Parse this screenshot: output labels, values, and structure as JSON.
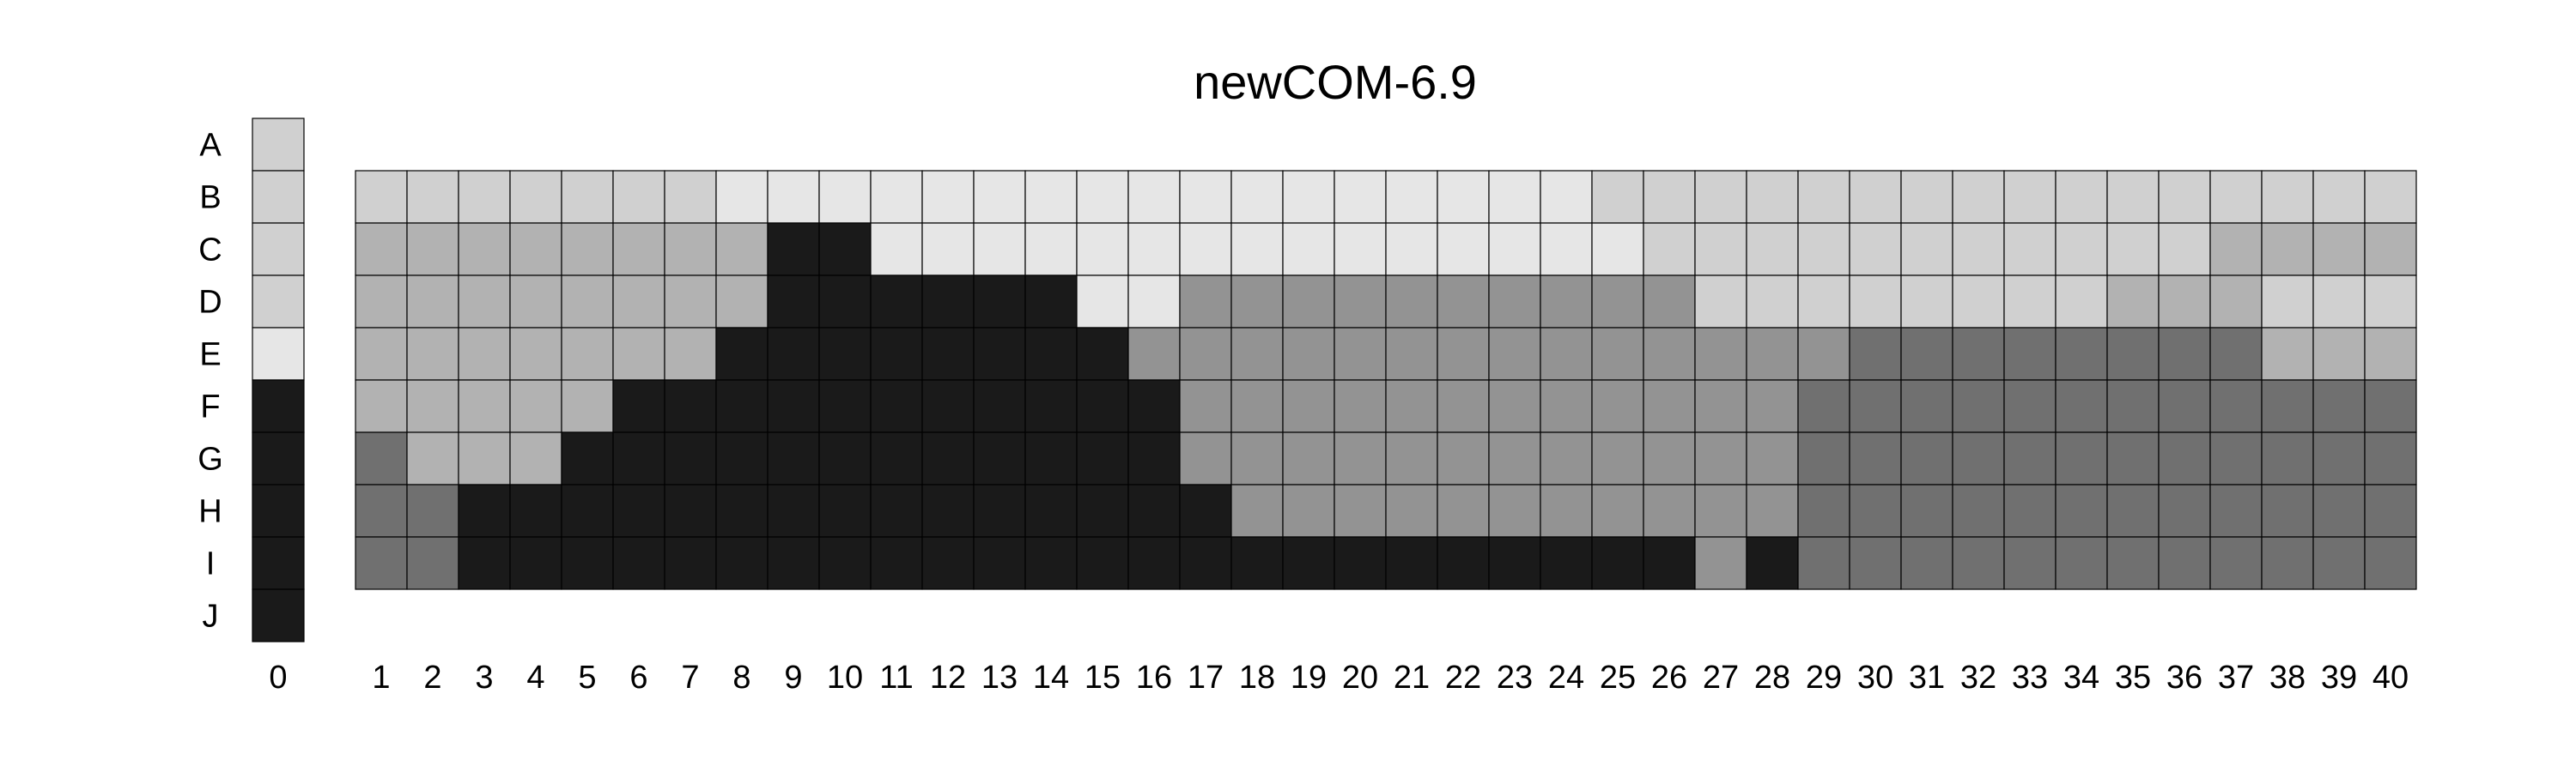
{
  "chart_data": {
    "type": "heatmap",
    "title": "newCOM-6.9",
    "rows": [
      "A",
      "B",
      "C",
      "D",
      "E",
      "F",
      "G",
      "H",
      "I",
      "J"
    ],
    "columns": [
      "0",
      "1",
      "2",
      "3",
      "4",
      "5",
      "6",
      "7",
      "8",
      "9",
      "10",
      "11",
      "12",
      "13",
      "14",
      "15",
      "16",
      "17",
      "18",
      "19",
      "20",
      "21",
      "22",
      "23",
      "24",
      "25",
      "26",
      "27",
      "28",
      "29",
      "30",
      "31",
      "32",
      "33",
      "34",
      "35",
      "36",
      "37",
      "38",
      "39",
      "40"
    ],
    "column_0_values": [
      "c3",
      "c3",
      "c3",
      "c3",
      "c2",
      "k",
      "k",
      "k",
      "k",
      "k"
    ],
    "grid_rows": [
      "B",
      "C",
      "D",
      "E",
      "F",
      "G",
      "H",
      "I"
    ],
    "grid_columns_from": 1,
    "grid_values": [
      [
        "c3",
        "c3",
        "c3",
        "c3",
        "c3",
        "c3",
        "c3",
        "c2",
        "c2",
        "c2",
        "c2",
        "c2",
        "c2",
        "c2",
        "c2",
        "c2",
        "c2",
        "c2",
        "c2",
        "c2",
        "c2",
        "c2",
        "c2",
        "c2",
        "c3",
        "c3",
        "c3",
        "c3",
        "c3",
        "c3",
        "c3",
        "c3",
        "c3",
        "c3",
        "c3",
        "c3",
        "c3",
        "c3",
        "c3",
        "c3"
      ],
      [
        "c4",
        "c4",
        "c4",
        "c4",
        "c4",
        "c4",
        "c4",
        "c4",
        "k",
        "k",
        "c2",
        "c2",
        "c2",
        "c2",
        "c2",
        "c2",
        "c2",
        "c2",
        "c2",
        "c2",
        "c2",
        "c2",
        "c2",
        "c2",
        "c2",
        "c3",
        "c3",
        "c3",
        "c3",
        "c3",
        "c3",
        "c3",
        "c3",
        "c3",
        "c3",
        "c3",
        "c4",
        "c4",
        "c4",
        "c4"
      ],
      [
        "c4",
        "c4",
        "c4",
        "c4",
        "c4",
        "c4",
        "c4",
        "c4",
        "k",
        "k",
        "k",
        "k",
        "k",
        "k",
        "c2",
        "c2",
        "c5",
        "c5",
        "c5",
        "c5",
        "c5",
        "c5",
        "c5",
        "c5",
        "c5",
        "c5",
        "c3",
        "c3",
        "c3",
        "c3",
        "c3",
        "c3",
        "c3",
        "c3",
        "c4",
        "c4",
        "c4",
        "c3",
        "c3",
        "c3"
      ],
      [
        "c4",
        "c4",
        "c4",
        "c4",
        "c4",
        "c4",
        "c4",
        "k",
        "k",
        "k",
        "k",
        "k",
        "k",
        "k",
        "k",
        "c5",
        "c5",
        "c5",
        "c5",
        "c5",
        "c5",
        "c5",
        "c5",
        "c5",
        "c5",
        "c5",
        "c5",
        "c5",
        "c5",
        "c6",
        "c6",
        "c6",
        "c6",
        "c6",
        "c6",
        "c6",
        "c6",
        "c4",
        "c4",
        "c4"
      ],
      [
        "c4",
        "c4",
        "c4",
        "c4",
        "c4",
        "k",
        "k",
        "k",
        "k",
        "k",
        "k",
        "k",
        "k",
        "k",
        "k",
        "k",
        "c5",
        "c5",
        "c5",
        "c5",
        "c5",
        "c5",
        "c5",
        "c5",
        "c5",
        "c5",
        "c5",
        "c5",
        "c6",
        "c6",
        "c6",
        "c6",
        "c6",
        "c6",
        "c6",
        "c6",
        "c6",
        "c6",
        "c6",
        "c6"
      ],
      [
        "c6",
        "c4",
        "c4",
        "c4",
        "k",
        "k",
        "k",
        "k",
        "k",
        "k",
        "k",
        "k",
        "k",
        "k",
        "k",
        "k",
        "c5",
        "c5",
        "c5",
        "c5",
        "c5",
        "c5",
        "c5",
        "c5",
        "c5",
        "c5",
        "c5",
        "c5",
        "c6",
        "c6",
        "c6",
        "c6",
        "c6",
        "c6",
        "c6",
        "c6",
        "c6",
        "c6",
        "c6",
        "c6"
      ],
      [
        "c6",
        "c6",
        "k",
        "k",
        "k",
        "k",
        "k",
        "k",
        "k",
        "k",
        "k",
        "k",
        "k",
        "k",
        "k",
        "k",
        "k",
        "c5",
        "c5",
        "c5",
        "c5",
        "c5",
        "c5",
        "c5",
        "c5",
        "c5",
        "c5",
        "c5",
        "c6",
        "c6",
        "c6",
        "c6",
        "c6",
        "c6",
        "c6",
        "c6",
        "c6",
        "c6",
        "c6",
        "c6"
      ],
      [
        "c6",
        "c6",
        "k",
        "k",
        "k",
        "k",
        "k",
        "k",
        "k",
        "k",
        "k",
        "k",
        "k",
        "k",
        "k",
        "k",
        "k",
        "k",
        "k",
        "k",
        "k",
        "k",
        "k",
        "k",
        "k",
        "k",
        "c5",
        "k",
        "c6",
        "c6",
        "c6",
        "c6",
        "c6",
        "c6",
        "c6",
        "c6",
        "c6",
        "c6",
        "c6",
        "c6"
      ]
    ],
    "palette": {
      "c2": "#e6e6e6",
      "c3": "#d0d0d0",
      "c4": "#b2b2b2",
      "c5": "#939393",
      "c6": "#707070",
      "k": "#1a1a1a"
    },
    "grid": true,
    "legend": "none"
  }
}
